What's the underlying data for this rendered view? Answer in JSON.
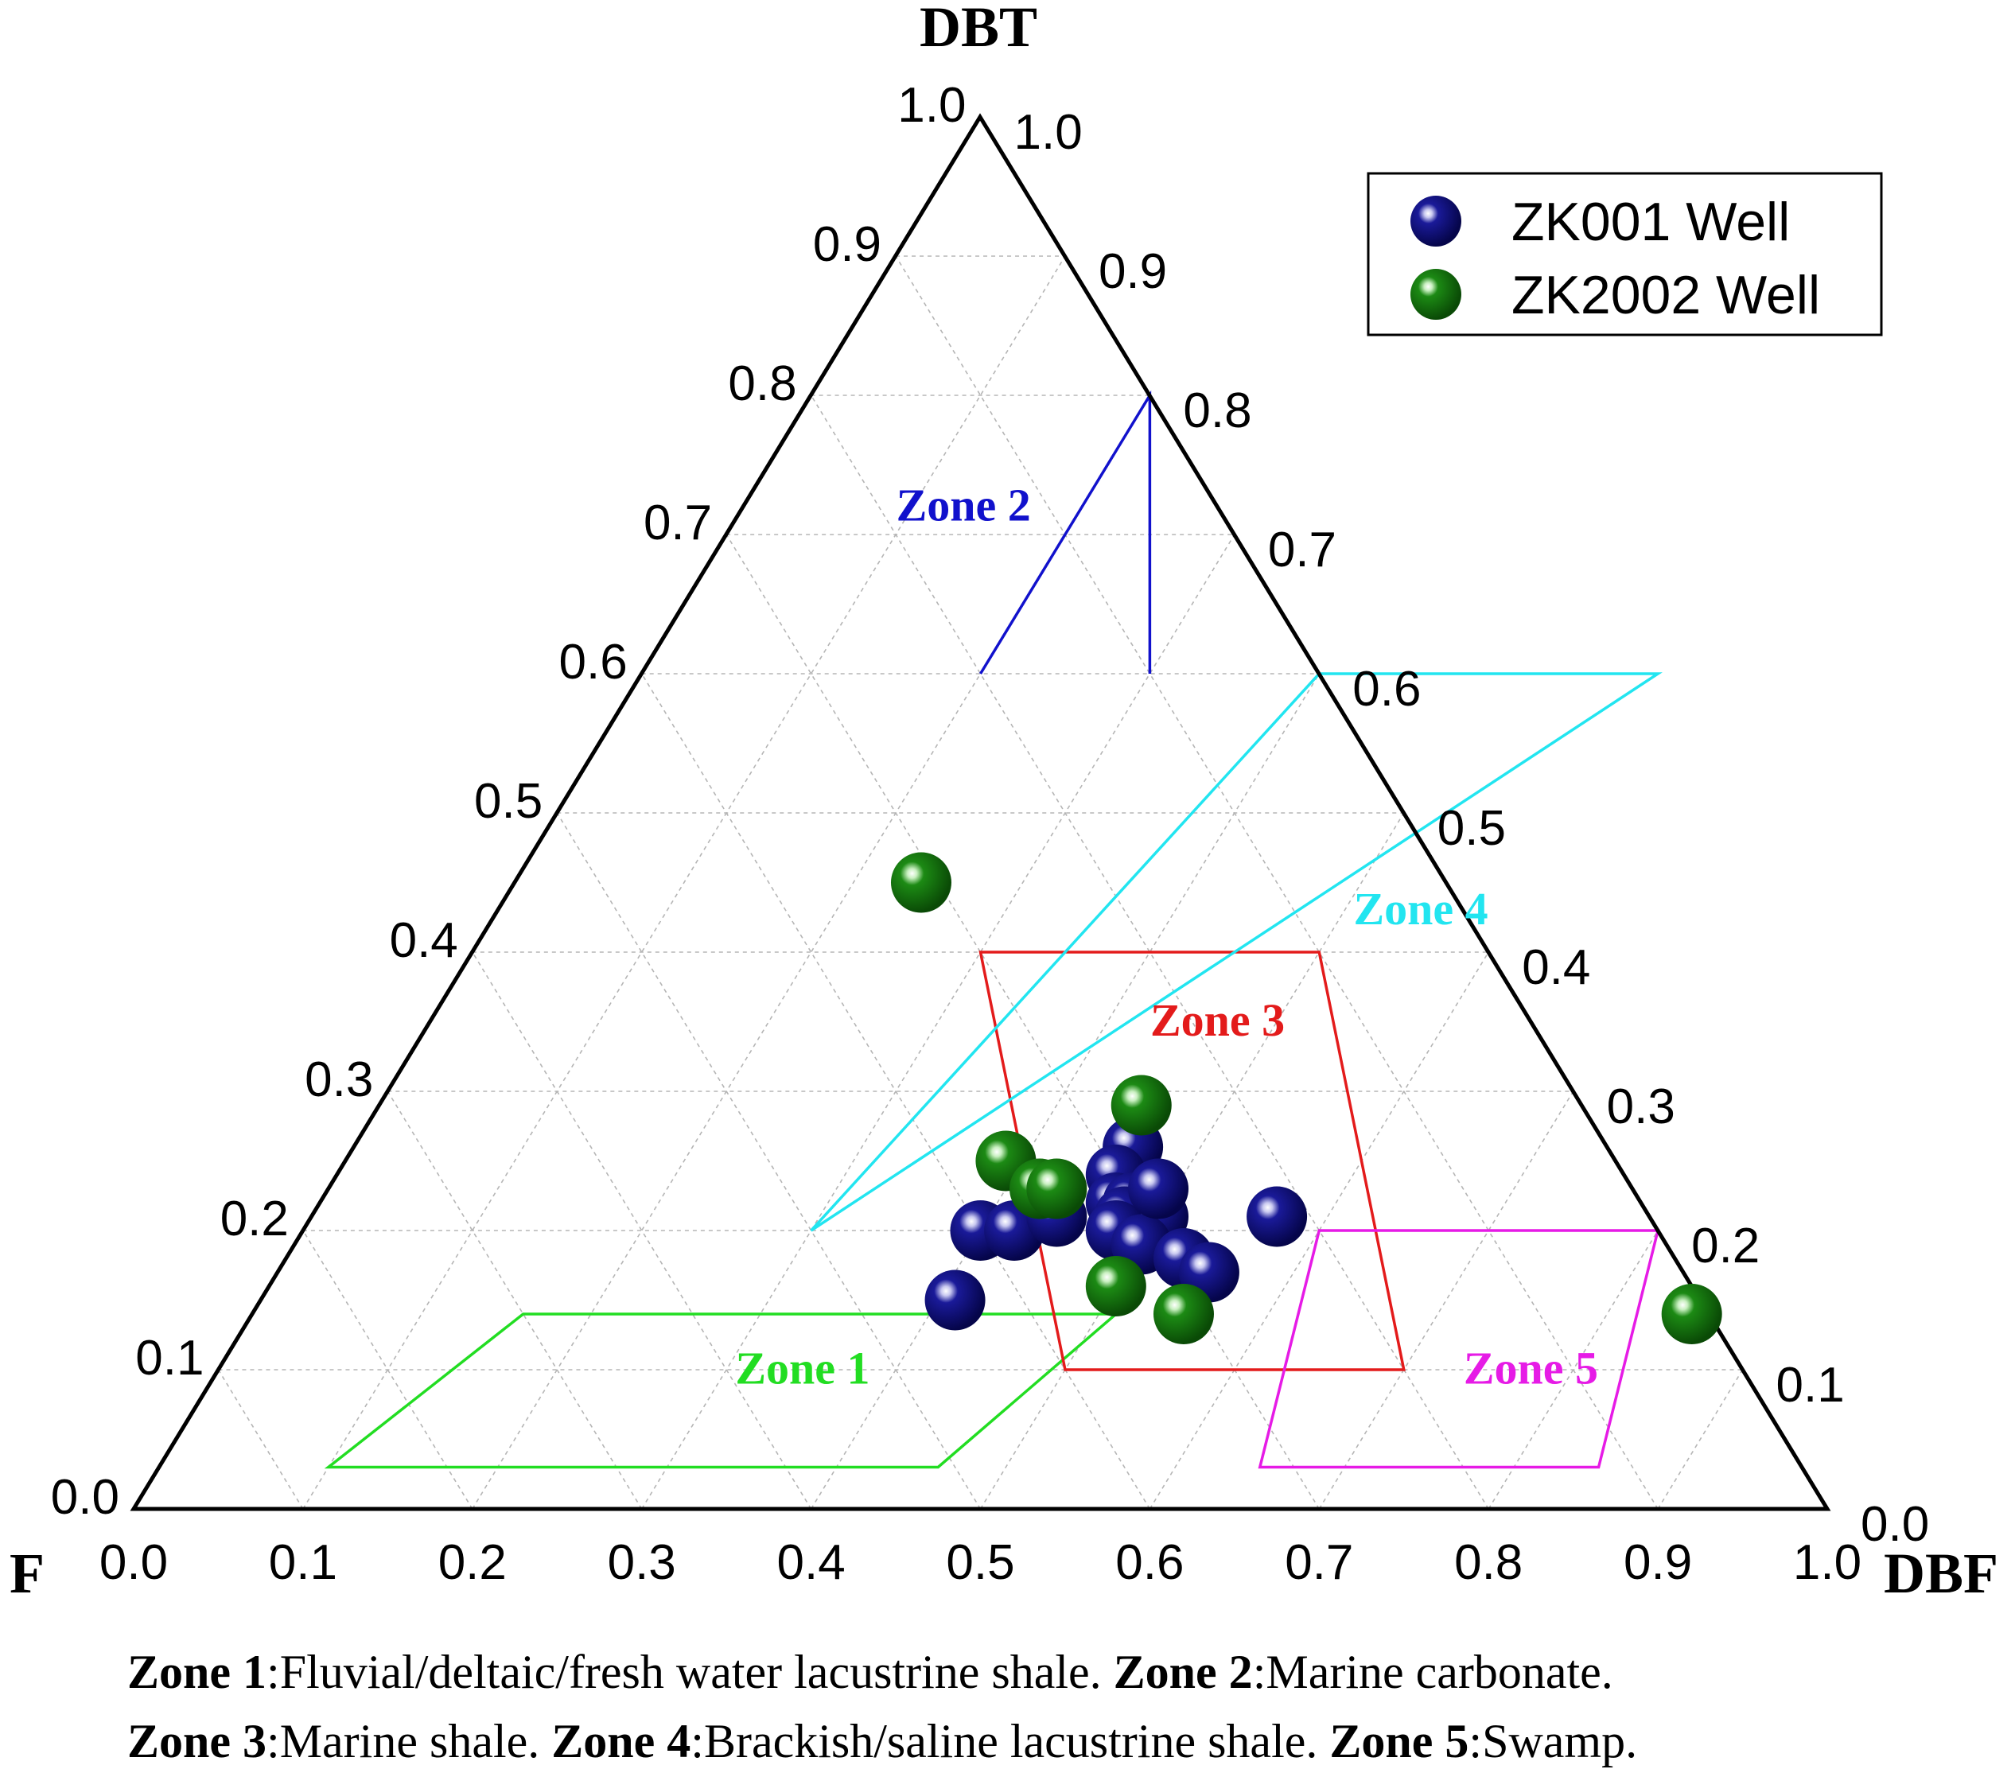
{
  "chart_data": {
    "type": "scatter",
    "subtype": "ternary",
    "axes": {
      "top": "DBT",
      "left": "F",
      "right": "DBF"
    },
    "ticks": [
      "0.0",
      "0.1",
      "0.2",
      "0.3",
      "0.4",
      "0.5",
      "0.6",
      "0.7",
      "0.8",
      "0.9",
      "1.0"
    ],
    "grid": true,
    "legend_position": "top-right",
    "colors": {
      "ZK001": "#0b0b7a",
      "ZK2002": "#1c7a12"
    },
    "series": [
      {
        "name": "ZK001 Well",
        "points": [
          {
            "DBF": 0.46,
            "DBT": 0.26
          },
          {
            "DBF": 0.46,
            "DBT": 0.24
          },
          {
            "DBF": 0.47,
            "DBT": 0.22
          },
          {
            "DBF": 0.48,
            "DBT": 0.22
          },
          {
            "DBF": 0.48,
            "DBT": 0.21
          },
          {
            "DBF": 0.5,
            "DBT": 0.21
          },
          {
            "DBF": 0.48,
            "DBT": 0.2
          },
          {
            "DBF": 0.5,
            "DBT": 0.19
          },
          {
            "DBF": 0.53,
            "DBT": 0.18
          },
          {
            "DBF": 0.55,
            "DBT": 0.17
          },
          {
            "DBF": 0.57,
            "DBT": 0.21
          },
          {
            "DBF": 0.4,
            "DBT": 0.2
          },
          {
            "DBF": 0.42,
            "DBT": 0.2
          },
          {
            "DBF": 0.44,
            "DBT": 0.21
          },
          {
            "DBF": 0.41,
            "DBT": 0.15
          },
          {
            "DBF": 0.49,
            "DBT": 0.23
          }
        ]
      },
      {
        "name": "ZK2002 Well",
        "points": [
          {
            "DBF": 0.24,
            "DBT": 0.45
          },
          {
            "DBF": 0.45,
            "DBT": 0.29
          },
          {
            "DBF": 0.39,
            "DBT": 0.25
          },
          {
            "DBF": 0.42,
            "DBT": 0.23
          },
          {
            "DBF": 0.43,
            "DBT": 0.23
          },
          {
            "DBF": 0.5,
            "DBT": 0.16
          },
          {
            "DBF": 0.55,
            "DBT": 0.14
          },
          {
            "DBF": 0.85,
            "DBT": 0.14
          }
        ]
      }
    ],
    "zones": [
      {
        "label": "Zone 1",
        "color": "#22dd22",
        "vertices": [
          {
            "DBF": 0.1,
            "DBT": 0.03
          },
          {
            "DBF": 0.46,
            "DBT": 0.03
          },
          {
            "DBF": 0.51,
            "DBT": 0.14
          },
          {
            "DBF": 0.16,
            "DBT": 0.14
          }
        ],
        "label_at": {
          "DBF": 0.35,
          "DBT": 0.09
        }
      },
      {
        "label": "Zone 2",
        "color": "#1111cc",
        "vertices": [
          {
            "DBF": 0.3,
            "DBT": 0.6
          },
          {
            "DBF": 0.2,
            "DBT": 0.8
          },
          {
            "DBF": 0.2,
            "DBT": 0.6
          }
        ],
        "open_edges": true,
        "label_at": {
          "DBF": 0.135,
          "DBT": 0.71
        }
      },
      {
        "label": "Zone 3",
        "color": "#e31b1b",
        "vertices": [
          {
            "DBF": 0.5,
            "DBT": 0.1
          },
          {
            "DBF": 0.7,
            "DBT": 0.1
          },
          {
            "DBF": 0.5,
            "DBT": 0.4
          },
          {
            "DBF": 0.3,
            "DBT": 0.4
          }
        ],
        "label_at": {
          "DBF": 0.47,
          "DBT": 0.34
        }
      },
      {
        "label": "Zone 4",
        "color": "#22e5f0",
        "vertices": [
          {
            "DBF": 0.3,
            "DBT": 0.2
          },
          {
            "DBF": 0.4,
            "DBT": 0.6
          },
          {
            "DBF": 0.6,
            "DBT": 0.6
          }
        ],
        "label_at": {
          "DBF": 0.55,
          "DBT": 0.42
        }
      },
      {
        "label": "Zone 5",
        "color": "#e61be6",
        "vertices": [
          {
            "DBF": 0.65,
            "DBT": 0.03
          },
          {
            "DBF": 0.85,
            "DBT": 0.03
          },
          {
            "DBF": 0.8,
            "DBT": 0.2
          },
          {
            "DBF": 0.6,
            "DBT": 0.2
          }
        ],
        "label_at": {
          "DBF": 0.78,
          "DBT": 0.09
        }
      }
    ]
  },
  "caption": {
    "line1": [
      {
        "bold": "Zone 1",
        "text": ":Fluvial/deltaic/fresh water lacustrine shale. "
      },
      {
        "bold": "Zone 2",
        "text": ":Marine carbonate."
      }
    ],
    "line2": [
      {
        "bold": "Zone 3",
        "text": ":Marine shale. "
      },
      {
        "bold": "Zone 4",
        "text": ":Brackish/saline lacustrine shale. "
      },
      {
        "bold": "Zone 5",
        "text": ":Swamp."
      }
    ]
  }
}
